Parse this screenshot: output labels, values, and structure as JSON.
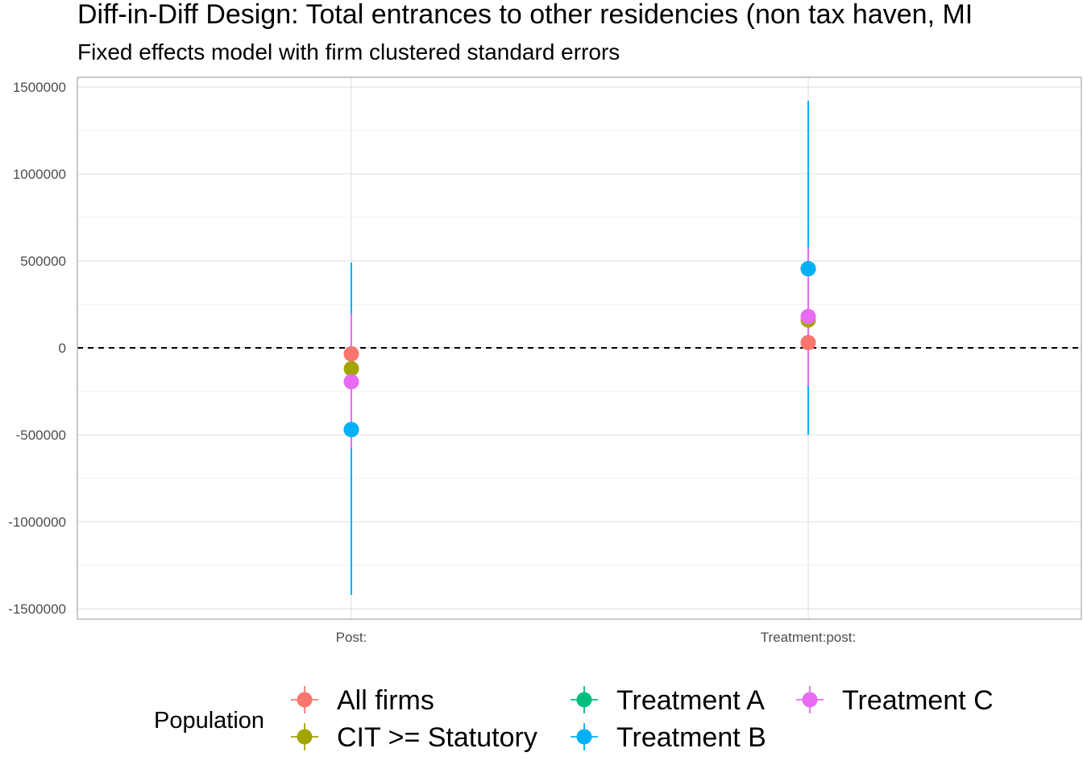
{
  "chart_data": {
    "type": "scatter",
    "title": "Diff-in-Diff Design: Total entrances to other residencies (non tax haven, MI",
    "subtitle": "Fixed effects model with firm clustered standard errors",
    "categories": [
      "Post:",
      "Treatment:post:"
    ],
    "ylim": [
      -1550000,
      1550000
    ],
    "yticks": [
      1500000,
      1000000,
      500000,
      0,
      -500000,
      -1000000,
      -1500000
    ],
    "ytick_labels": [
      "1500000",
      "1000000",
      "500000",
      "0",
      "-500000",
      "-1000000",
      "-1500000"
    ],
    "reference_line": 0,
    "grid": true,
    "legend_title": "Population",
    "legend_position": "bottom",
    "series": [
      {
        "name": "All firms",
        "color": "#F8766D",
        "points": [
          {
            "x": "Post:",
            "y": -35000,
            "lo": -35000,
            "hi": -35000
          },
          {
            "x": "Treatment:post:",
            "y": 30000,
            "lo": 30000,
            "hi": 30000
          }
        ]
      },
      {
        "name": "CIT >= Statutory",
        "color": "#A3A500",
        "points": [
          {
            "x": "Post:",
            "y": -120000,
            "lo": -440000,
            "hi": 190000
          },
          {
            "x": "Treatment:post:",
            "y": 160000,
            "lo": -140000,
            "hi": 460000
          }
        ]
      },
      {
        "name": "Treatment A",
        "color": "#00BF7D",
        "points": [
          {
            "x": "Post:",
            "y": -470000,
            "lo": -1420000,
            "hi": 490000
          },
          {
            "x": "Treatment:post:",
            "y": 455000,
            "lo": -500000,
            "hi": 1420000
          }
        ]
      },
      {
        "name": "Treatment B",
        "color": "#00B0F6",
        "points": [
          {
            "x": "Post:",
            "y": -470000,
            "lo": -1420000,
            "hi": 490000
          },
          {
            "x": "Treatment:post:",
            "y": 455000,
            "lo": -500000,
            "hi": 1420000
          }
        ]
      },
      {
        "name": "Treatment C",
        "color": "#E76BF3",
        "points": [
          {
            "x": "Post:",
            "y": -195000,
            "lo": -580000,
            "hi": 200000
          },
          {
            "x": "Treatment:post:",
            "y": 180000,
            "lo": -220000,
            "hi": 580000
          }
        ]
      }
    ]
  }
}
